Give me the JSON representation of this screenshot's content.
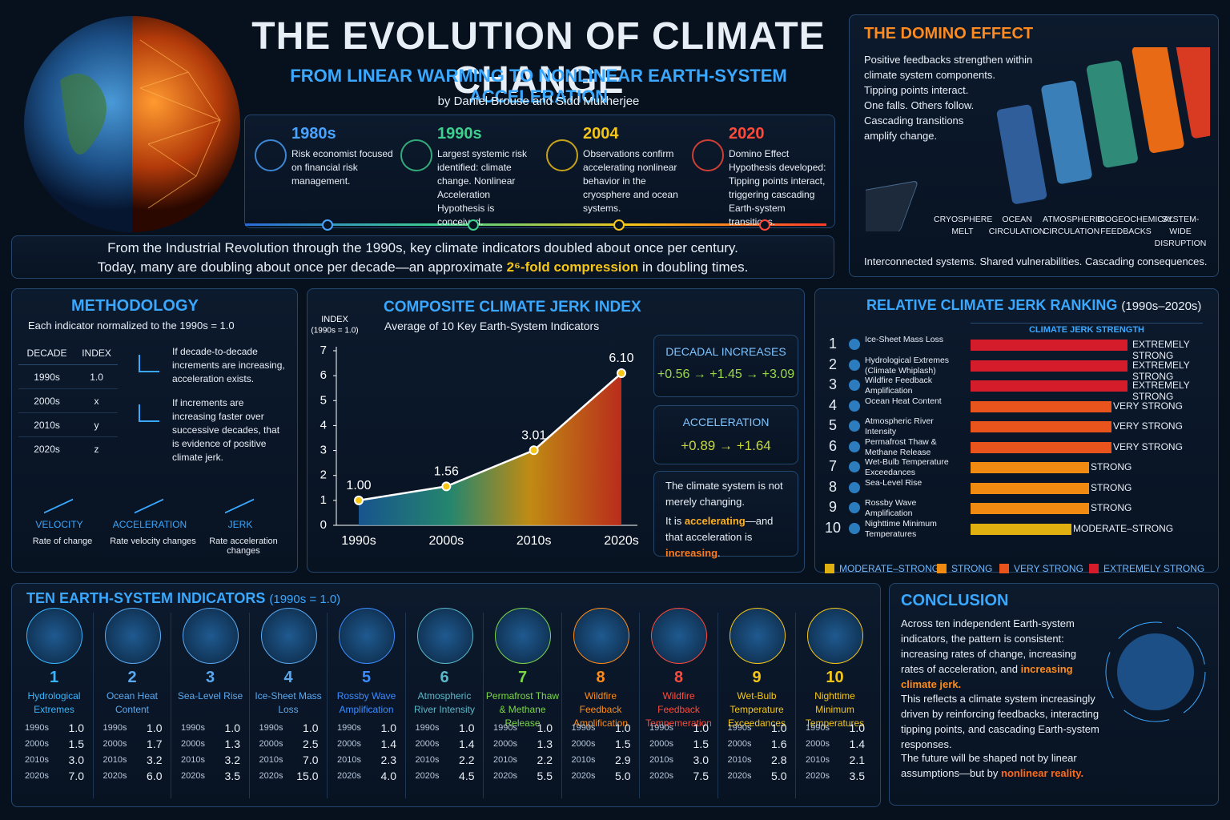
{
  "header": {
    "title": "THE EVOLUTION OF CLIMATE CHANGE",
    "subtitle": "FROM LINEAR WARMING TO NONLINEAR EARTH-SYSTEM ACCELERATION",
    "byline": "by Daniel Brouse and Sidd Mukherjee"
  },
  "timeline": [
    {
      "year": "1980s",
      "color": "#4aa3ff",
      "text": "Risk economist focused on financial risk management."
    },
    {
      "year": "1990s",
      "color": "#3fcf8e",
      "text": "Largest systemic risk identified: climate change. Nonlinear Acceleration Hypothesis is conceived."
    },
    {
      "year": "2004",
      "color": "#f5c518",
      "text": "Observations confirm accelerating nonlinear behavior in the cryosphere and ocean systems."
    },
    {
      "year": "2020",
      "color": "#ff4a3a",
      "text": "Domino Effect Hypothesis developed: Tipping points interact, triggering cascading Earth-system transitions."
    }
  ],
  "summary": {
    "line1": "From the Industrial Revolution through the 1990s, key climate indicators doubled about once per century.",
    "line2": [
      {
        "text": "Today, many are doubling about once per decade—an approximate "
      },
      {
        "text": "2⁶-fold compression",
        "color": "#f5c518"
      },
      {
        "text": " in doubling times."
      }
    ]
  },
  "domino": {
    "title": "THE DOMINO EFFECT",
    "lines": [
      "Positive feedbacks strengthen within",
      "climate system components.",
      "Tipping points interact.",
      "One falls. Others follow.",
      "Cascading transitions",
      "amplify change."
    ],
    "labels": [
      "CRYOSPHERE MELT",
      "OCEAN CIRCULATION",
      "ATMOSPHERIC CIRCULATION",
      "BIOGEOCHEMICAL FEEDBACKS",
      "SYSTEM-WIDE DISRUPTION"
    ],
    "footer": "Interconnected systems.  Shared vulnerabilities.  Cascading consequences."
  },
  "methodology": {
    "title": "METHODOLOGY",
    "note": "Each indicator normalized to the 1990s = 1.0",
    "table": {
      "header": [
        "DECADE",
        "INDEX"
      ],
      "rows": [
        [
          "1990s",
          "1.0"
        ],
        [
          "2000s",
          "x"
        ],
        [
          "2010s",
          "y"
        ],
        [
          "2020s",
          "z"
        ]
      ]
    },
    "notes": [
      "If decade-to-decade increments are increasing, acceleration exists.",
      "If increments are increasing faster over successive decades, that is evidence of positive climate jerk."
    ],
    "steps": [
      {
        "name": "VELOCITY",
        "desc": "Rate of change"
      },
      {
        "name": "ACCELERATION",
        "desc": "Rate velocity changes"
      },
      {
        "name": "JERK",
        "desc": "Rate acceleration changes"
      }
    ]
  },
  "chart_data": {
    "type": "line",
    "title": "COMPOSITE CLIMATE JERK INDEX",
    "subtitle": "Average of 10 Key Earth-System Indicators",
    "y_label": [
      "INDEX",
      "(1990s = 1.0)"
    ],
    "categories": [
      "1990s",
      "2000s",
      "2010s",
      "2020s"
    ],
    "values": [
      1.0,
      1.56,
      3.01,
      6.1
    ],
    "value_labels": [
      "1.00",
      "1.56",
      "3.01",
      "6.10"
    ],
    "color": "#ffffff",
    "ylim": [
      0,
      7
    ],
    "yticks": [
      0,
      1,
      2,
      3,
      4,
      5,
      6,
      7
    ]
  },
  "stats": {
    "decadal": {
      "title": "DECADAL INCREASES",
      "text": "+0.56 → +1.45 → +3.09"
    },
    "acceleration": {
      "title": "ACCELERATION",
      "text": "+0.89 → +1.64"
    },
    "note": [
      [
        {
          "text": "The climate system is not merely changing."
        }
      ],
      [
        {
          "text": "It is "
        },
        {
          "text": "accelerating",
          "color": "#ffb020"
        },
        {
          "text": "—and that acceleration is "
        },
        {
          "text": "increasing",
          "color": "#ff7a1a"
        },
        {
          "text": "."
        }
      ]
    ]
  },
  "ranking": {
    "title": "RELATIVE CLIMATE JERK RANKING",
    "suffix": "(1990s–2020s)",
    "header": "CLIMATE JERK STRENGTH",
    "items": [
      {
        "rank": 1,
        "name": "Ice-Sheet Mass Loss",
        "strength": "EXTREMELY STRONG"
      },
      {
        "rank": 2,
        "name": "Hydrological Extremes (Climate Whiplash)",
        "strength": "EXTREMELY STRONG"
      },
      {
        "rank": 3,
        "name": "Wildfire Feedback Amplification",
        "strength": "EXTREMELY STRONG"
      },
      {
        "rank": 4,
        "name": "Ocean Heat Content",
        "strength": "VERY STRONG"
      },
      {
        "rank": 5,
        "name": "Atmospheric River Intensity",
        "strength": "VERY STRONG"
      },
      {
        "rank": 6,
        "name": "Permafrost Thaw & Methane Release",
        "strength": "VERY STRONG"
      },
      {
        "rank": 7,
        "name": "Wet-Bulb Temperature Exceedances",
        "strength": "STRONG"
      },
      {
        "rank": 8,
        "name": "Sea-Level Rise",
        "strength": "STRONG"
      },
      {
        "rank": 9,
        "name": "Rossby Wave Amplification",
        "strength": "STRONG"
      },
      {
        "rank": 10,
        "name": "Nighttime Minimum Temperatures",
        "strength": "MODERATE–STRONG"
      }
    ],
    "legend": [
      {
        "label": "MODERATE–STRONG",
        "color": "#e0b010"
      },
      {
        "label": "STRONG",
        "color": "#f08a10"
      },
      {
        "label": "VERY STRONG",
        "color": "#e8541c"
      },
      {
        "label": "EXTREMELY STRONG",
        "color": "#d41c2a"
      }
    ]
  },
  "indicators": {
    "title": "TEN EARTH-SYSTEM INDICATORS",
    "suffix": "(1990s = 1.0)",
    "decades": [
      "1990s",
      "2000s",
      "2010s",
      "2020s"
    ],
    "items": [
      {
        "number": 1,
        "name": "Hydrological Extremes",
        "color": "#36b6ff",
        "values": [
          "1.0",
          "1.5",
          "3.0",
          "7.0"
        ]
      },
      {
        "number": 2,
        "name": "Ocean Heat Content",
        "color": "#5aa9f0",
        "values": [
          "1.0",
          "1.7",
          "3.2",
          "6.0"
        ]
      },
      {
        "number": 3,
        "name": "Sea-Level Rise",
        "color": "#5aa9f0",
        "values": [
          "1.0",
          "1.3",
          "3.2",
          "3.5"
        ]
      },
      {
        "number": 4,
        "name": "Ice-Sheet Mass Loss",
        "color": "#5aa9f0",
        "values": [
          "1.0",
          "2.5",
          "7.0",
          "15.0"
        ]
      },
      {
        "number": 5,
        "name": "Rossby Wave Amplification",
        "color": "#3a8cff",
        "values": [
          "1.0",
          "1.4",
          "2.3",
          "4.0"
        ]
      },
      {
        "number": 6,
        "name": "Atmospheric River Intensity",
        "color": "#5ab8c8",
        "values": [
          "1.0",
          "1.4",
          "2.2",
          "4.5"
        ]
      },
      {
        "number": 7,
        "name": "Permafrost Thaw & Methane Release",
        "color": "#7bd64a",
        "values": [
          "1.0",
          "1.3",
          "2.2",
          "5.5"
        ]
      },
      {
        "number": 8,
        "name": "Wildfire Feedback Amplification",
        "color": "#ff8c1a",
        "values": [
          "1.0",
          "1.5",
          "2.9",
          "5.0"
        ]
      },
      {
        "number": 8,
        "name": "Wildfire Feedback Tempemeration",
        "color": "#ff4a3a",
        "values": [
          "1.0",
          "1.5",
          "3.0",
          "7.5"
        ]
      },
      {
        "number": 9,
        "name": "Wet-Bulb Temperature Exceedances",
        "color": "#f5c518",
        "values": [
          "1.0",
          "1.6",
          "2.8",
          "5.0"
        ]
      },
      {
        "number": 10,
        "name": "Nighttime Minimum Temperatures",
        "color": "#f5c518",
        "values": [
          "1.0",
          "1.4",
          "2.1",
          "3.5"
        ]
      }
    ]
  },
  "conclusion": {
    "title": "CONCLUSION",
    "paragraphs": [
      [
        {
          "text": "Across ten independent Earth-system indicators, the pattern is consistent: increasing rates of change, increasing rates of acceleration, and "
        },
        {
          "text": "increasing climate jerk.",
          "color": "#ff8c1a"
        }
      ],
      [
        {
          "text": "This reflects a climate system increasingly driven by reinforcing feedbacks, interacting tipping points, and cascading Earth-system responses."
        }
      ],
      [
        {
          "text": "The future will be shaped not by linear assumptions—but by "
        },
        {
          "text": "nonlinear reality.",
          "color": "#ff6a1a"
        }
      ]
    ]
  }
}
